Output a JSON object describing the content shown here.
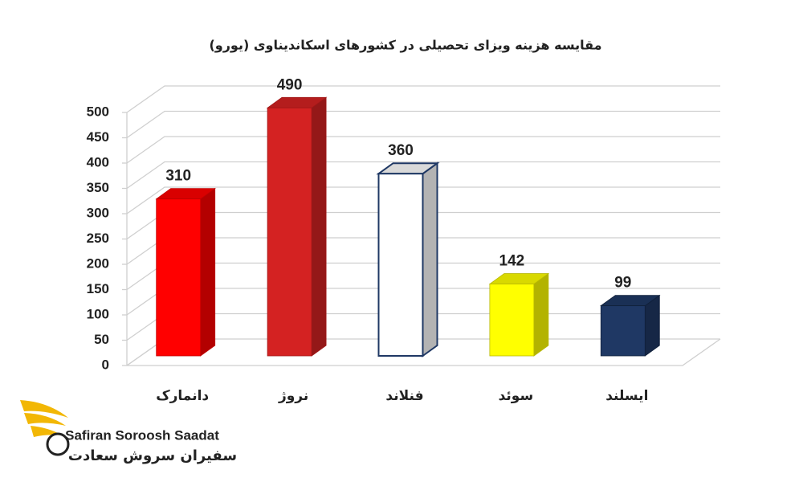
{
  "chart_data": {
    "type": "bar3d",
    "title": "مقایسه هزینه ویزای تحصیلی در کشورهای اسکاندیناوی (یورو)",
    "categories": [
      "دانمارک",
      "نروژ",
      "فنلاند",
      "سوئد",
      "ایسلند"
    ],
    "values": [
      310,
      490,
      360,
      142,
      99
    ],
    "colors": [
      "#ff0000",
      "#d42222",
      "#ffffff",
      "#ffff00",
      "#1f3864"
    ],
    "edge_colors": [
      "#c00000",
      "#a01818",
      "#1f3864",
      "#b8b800",
      "#10203a"
    ],
    "ylim": [
      0,
      500
    ],
    "yticks": [
      0,
      50,
      100,
      150,
      200,
      250,
      300,
      350,
      400,
      450,
      500
    ],
    "grid": true
  },
  "logo": {
    "name_en": "Safiran Soroosh Saadat",
    "name_fa": "سفیران سروش سعادت"
  }
}
